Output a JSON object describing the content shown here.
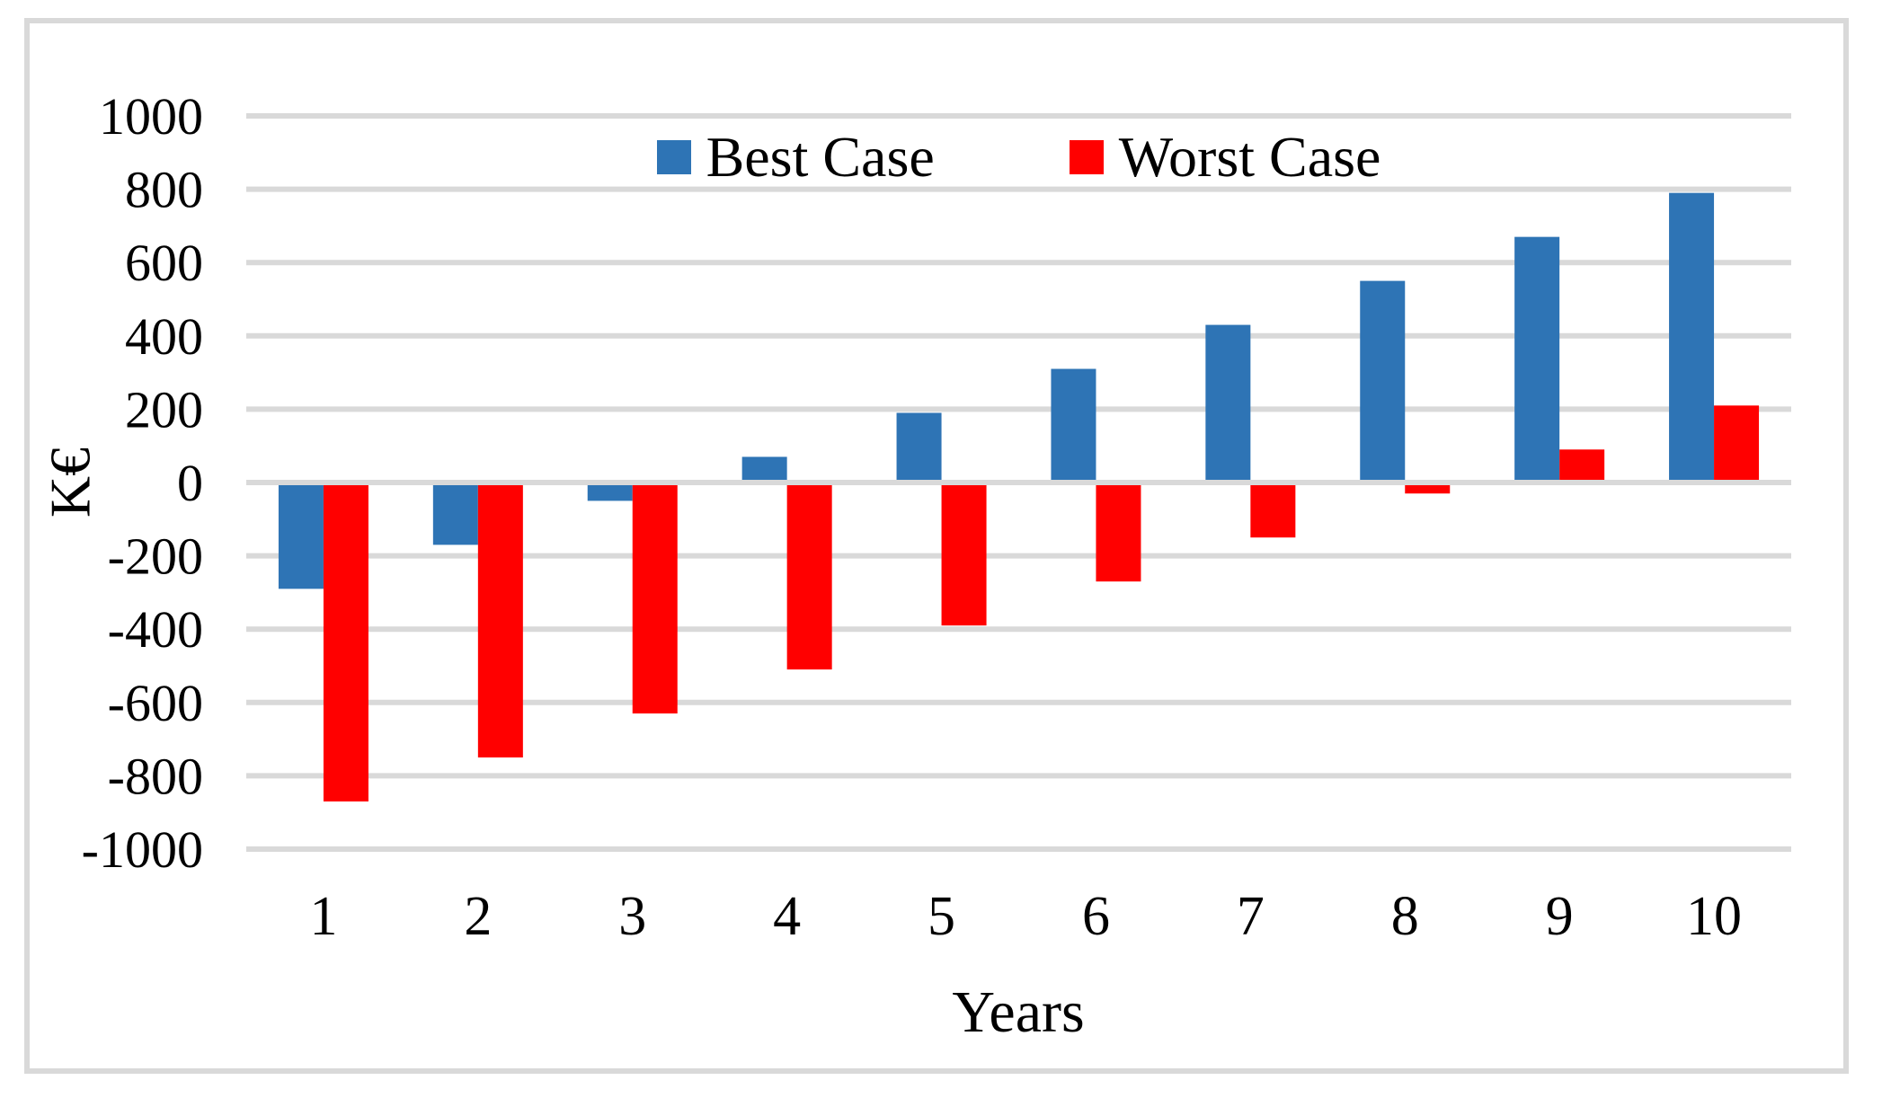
{
  "figure": {
    "background_color": "#FFFFFF",
    "border_color": "#D9D9D9"
  },
  "legend": {
    "items": [
      {
        "label": "Best Case",
        "color": "#2E74B5"
      },
      {
        "label": "Worst Case",
        "color": "#FF0000"
      }
    ]
  },
  "chart_data": {
    "type": "bar",
    "categories": [
      "1",
      "2",
      "3",
      "4",
      "5",
      "6",
      "7",
      "8",
      "9",
      "10"
    ],
    "series": [
      {
        "name": "Best Case",
        "color": "#2E74B5",
        "values": [
          -290,
          -170,
          -50,
          70,
          190,
          310,
          430,
          550,
          670,
          790
        ]
      },
      {
        "name": "Worst Case",
        "color": "#FF0000",
        "values": [
          -870,
          -750,
          -630,
          -510,
          -390,
          -270,
          -150,
          -30,
          90,
          210
        ]
      }
    ],
    "title": "",
    "xlabel": "Years",
    "ylabel": "K€",
    "ylim": [
      -1000,
      1000
    ],
    "y_tick_step": 200,
    "y_tick_labels": [
      "1000",
      "800",
      "600",
      "400",
      "200",
      "0",
      "-200",
      "-400",
      "-600",
      "-800",
      "-1000"
    ],
    "grid": true,
    "gridline_color": "#D9D9D9",
    "legend_position": "top-center"
  }
}
